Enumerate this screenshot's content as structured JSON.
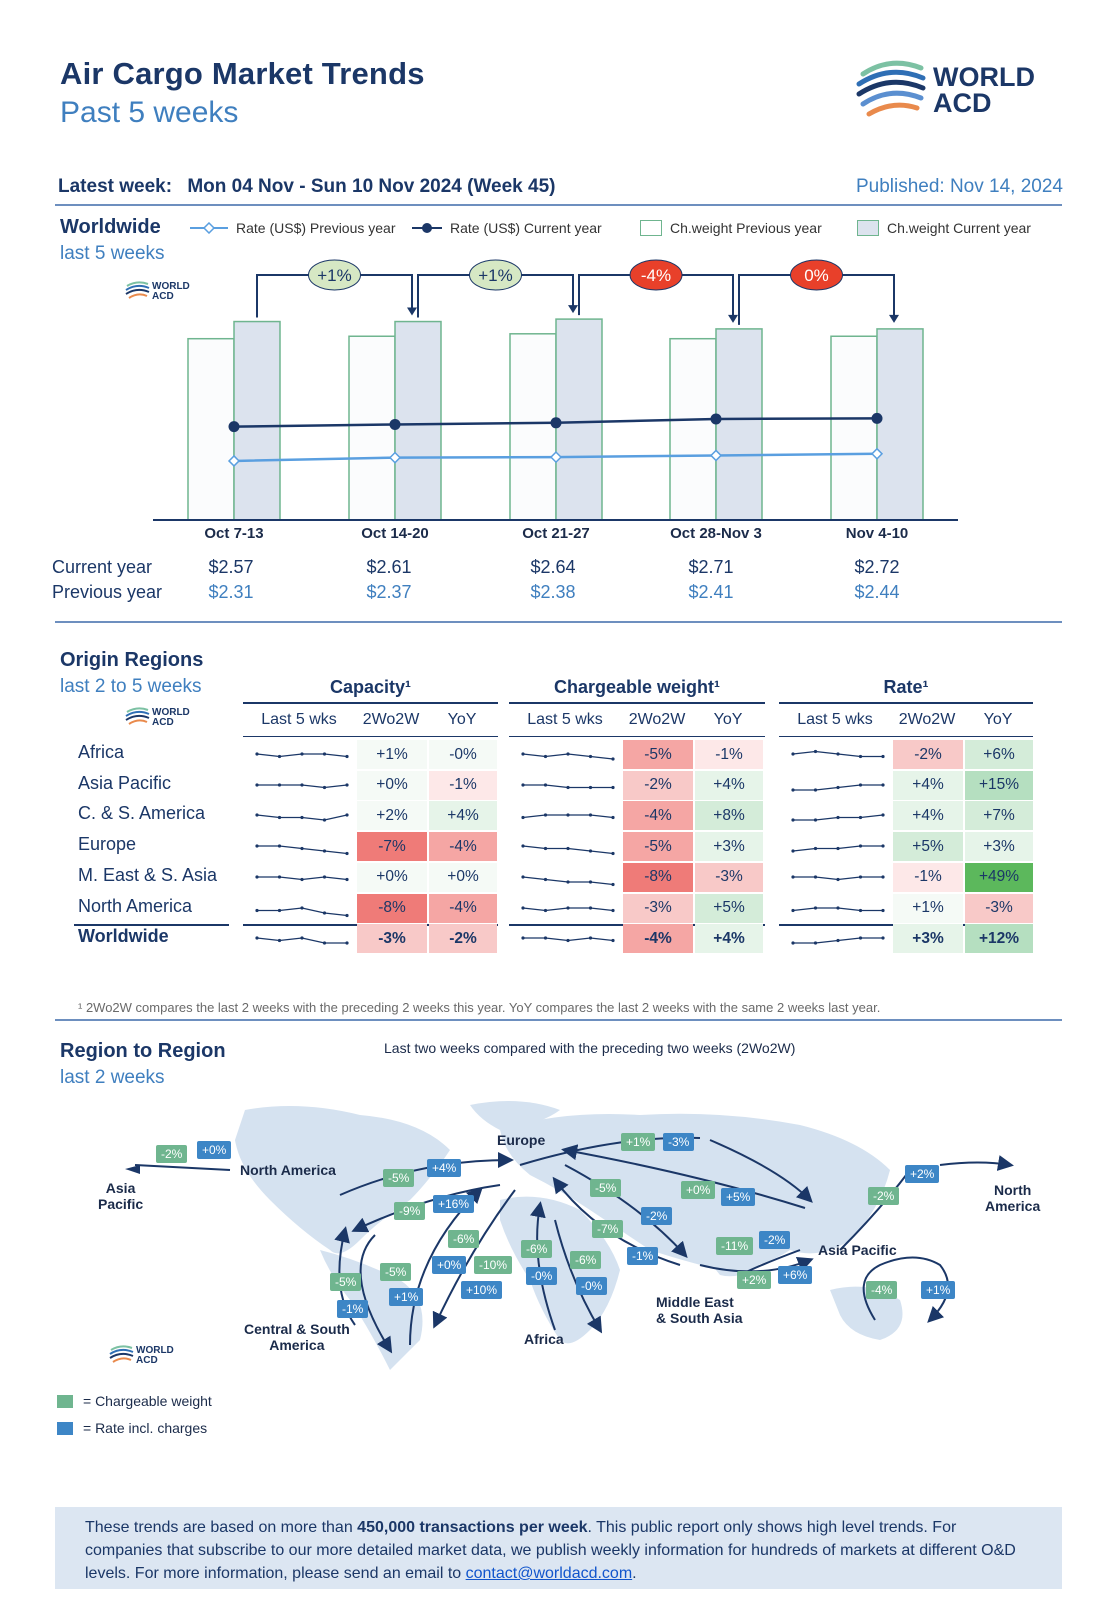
{
  "header": {
    "title": "Air Cargo Market Trends",
    "subtitle": "Past 5 weeks",
    "logo_text_1": "WORLD",
    "logo_text_2": "ACD",
    "latest_week_label": "Latest week:",
    "latest_week_value": "Mon 04 Nov - Sun 10 Nov 2024 (Week 45)",
    "published": "Published: Nov 14, 2024"
  },
  "worldwide": {
    "title": "Worldwide",
    "subtitle": "last 5 weeks",
    "legend": {
      "rate_prev": "Rate (US$) Previous year",
      "rate_curr": "Rate (US$) Current year",
      "cw_prev": "Ch.weight Previous year",
      "cw_curr": "Ch.weight Current year"
    },
    "row_labels": {
      "current": "Current year",
      "previous": "Previous year"
    }
  },
  "chart_data": {
    "type": "bar",
    "categories": [
      "Oct 7-13",
      "Oct 14-20",
      "Oct 21-27",
      "Oct 28-Nov 3",
      "Nov 4-10"
    ],
    "series": [
      {
        "name": "Ch.weight Previous year",
        "type": "bar",
        "values": [
          0.74,
          0.75,
          0.76,
          0.74,
          0.75
        ]
      },
      {
        "name": "Ch.weight Current year",
        "type": "bar",
        "values": [
          0.81,
          0.81,
          0.82,
          0.78,
          0.78
        ]
      },
      {
        "name": "Rate (US$) Current year",
        "type": "line",
        "values": [
          2.57,
          2.61,
          2.64,
          2.71,
          2.72
        ]
      },
      {
        "name": "Rate (US$) Previous year",
        "type": "line",
        "values": [
          2.31,
          2.37,
          2.38,
          2.41,
          2.44
        ]
      }
    ],
    "current_labels": [
      "$2.57",
      "$2.61",
      "$2.64",
      "$2.71",
      "$2.72"
    ],
    "previous_labels": [
      "$2.31",
      "$2.37",
      "$2.38",
      "$2.41",
      "$2.44"
    ],
    "changes": [
      "+1%",
      "+1%",
      "-4%",
      "0%"
    ],
    "change_colors": [
      "#d6e8c4",
      "#d6e8c4",
      "#e8402a",
      "#e8402a"
    ]
  },
  "origin": {
    "title": "Origin Regions",
    "subtitle": "last 2 to 5 weeks",
    "groups": [
      "Capacity¹",
      "Chargeable weight¹",
      "Rate¹"
    ],
    "cols": [
      "Last 5 wks",
      "2Wo2W",
      "YoY"
    ],
    "rows": [
      {
        "name": "Africa",
        "cap": [
          "+1%",
          "-0%"
        ],
        "cw": [
          "-5%",
          "-1%"
        ],
        "rate": [
          "-2%",
          "+6%"
        ]
      },
      {
        "name": "Asia Pacific",
        "cap": [
          "+0%",
          "-1%"
        ],
        "cw": [
          "-2%",
          "+4%"
        ],
        "rate": [
          "+4%",
          "+15%"
        ]
      },
      {
        "name": "C. & S. America",
        "cap": [
          "+2%",
          "+4%"
        ],
        "cw": [
          "-4%",
          "+8%"
        ],
        "rate": [
          "+4%",
          "+7%"
        ]
      },
      {
        "name": "Europe",
        "cap": [
          "-7%",
          "-4%"
        ],
        "cw": [
          "-5%",
          "+3%"
        ],
        "rate": [
          "+5%",
          "+3%"
        ]
      },
      {
        "name": "M. East & S. Asia",
        "cap": [
          "+0%",
          "+0%"
        ],
        "cw": [
          "-8%",
          "-3%"
        ],
        "rate": [
          "-1%",
          "+49%"
        ]
      },
      {
        "name": "North America",
        "cap": [
          "-8%",
          "-4%"
        ],
        "cw": [
          "-3%",
          "+5%"
        ],
        "rate": [
          "+1%",
          "-3%"
        ]
      },
      {
        "name": "Worldwide",
        "cap": [
          "-3%",
          "-2%"
        ],
        "cw": [
          "-4%",
          "+4%"
        ],
        "rate": [
          "+3%",
          "+12%"
        ]
      }
    ],
    "footnote": "¹ 2Wo2W compares the last 2 weeks with the preceding 2 weeks this year. YoY compares the last 2 weeks with the same 2 weeks last year."
  },
  "region": {
    "title": "Region to Region",
    "subtitle": "last 2 weeks",
    "caption": "Last two weeks compared with the preceding two weeks (2Wo2W)",
    "labels": {
      "europe": "Europe",
      "north_america": "North America",
      "asia_pacific_left": "Asia\nPacific",
      "north_america_right": "North\nAmerica",
      "asia_pacific": "Asia Pacific",
      "central_south": "Central & South\nAmerica",
      "africa": "Africa",
      "mesa": "Middle East\n& South Asia"
    },
    "tags": [
      {
        "t": "-2%",
        "c": "g"
      },
      {
        "t": "+0%",
        "c": "b"
      },
      {
        "t": "-5%",
        "c": "g"
      },
      {
        "t": "+4%",
        "c": "b"
      },
      {
        "t": "-9%",
        "c": "g"
      },
      {
        "t": "+16%",
        "c": "b"
      },
      {
        "t": "+1%",
        "c": "g"
      },
      {
        "t": "-3%",
        "c": "b"
      },
      {
        "t": "-5%",
        "c": "g"
      },
      {
        "t": "-2%",
        "c": "b"
      },
      {
        "t": "+0%",
        "c": "g"
      },
      {
        "t": "+5%",
        "c": "b"
      },
      {
        "t": "-7%",
        "c": "g"
      },
      {
        "t": "-1%",
        "c": "b"
      },
      {
        "t": "-2%",
        "c": "g"
      },
      {
        "t": "+2%",
        "c": "b"
      },
      {
        "t": "-11%",
        "c": "g"
      },
      {
        "t": "-2%",
        "c": "b"
      },
      {
        "t": "+2%",
        "c": "g"
      },
      {
        "t": "+6%",
        "c": "b"
      },
      {
        "t": "-6%",
        "c": "g"
      },
      {
        "t": "+0%",
        "c": "b"
      },
      {
        "t": "-10%",
        "c": "g"
      },
      {
        "t": "+10%",
        "c": "b"
      },
      {
        "t": "-6%",
        "c": "g"
      },
      {
        "t": "-0%",
        "c": "b"
      },
      {
        "t": "-6%",
        "c": "g"
      },
      {
        "t": "-0%",
        "c": "b"
      },
      {
        "t": "-5%",
        "c": "g"
      },
      {
        "t": "-1%",
        "c": "b"
      },
      {
        "t": "-5%",
        "c": "g"
      },
      {
        "t": "+1%",
        "c": "b"
      },
      {
        "t": "-4%",
        "c": "g"
      },
      {
        "t": "+1%",
        "c": "b"
      }
    ],
    "legend_cw": "= Chargeable weight",
    "legend_rate": "= Rate incl. charges",
    "color_green": "#6fb58f",
    "color_blue": "#3d86c6"
  },
  "footer": {
    "text_1": "These trends are based on more than ",
    "text_bold": "450,000 transactions per week",
    "text_2": ". This public report only shows high level trends. For companies that subscribe to our more detailed market data, we publish weekly information for hundreds of markets at different O&D levels. For more information, please send an email to ",
    "email": "contact@worldacd.com",
    "text_3": "."
  }
}
